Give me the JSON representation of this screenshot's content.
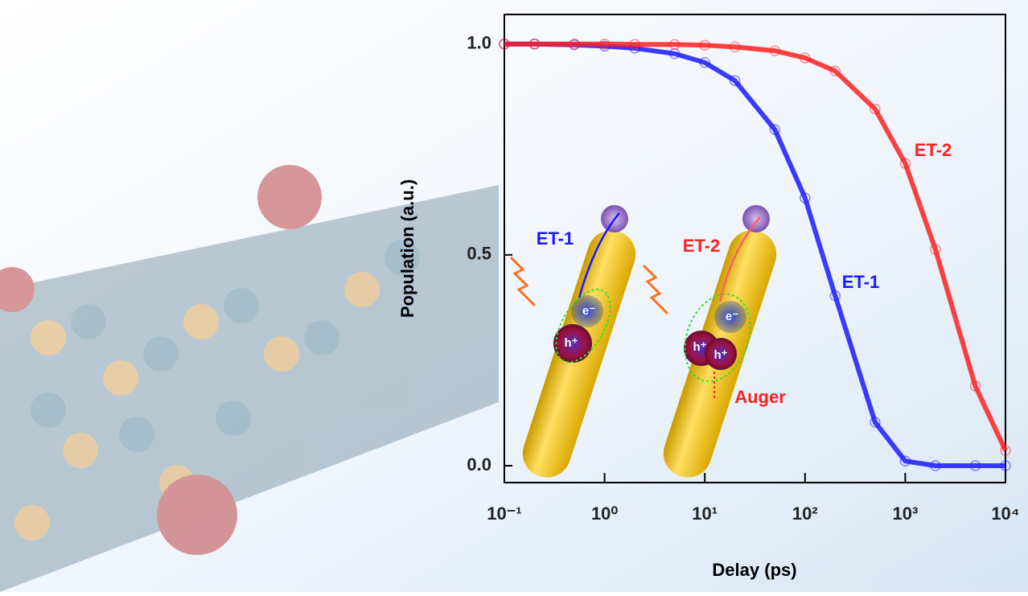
{
  "chart_data": {
    "type": "line",
    "xlabel": "Delay (ps)",
    "ylabel": "Population (a.u.)",
    "xscale": "log",
    "xlim": [
      0.1,
      10000
    ],
    "ylim": [
      -0.04,
      1.07
    ],
    "xticks": [
      {
        "value": 0.1,
        "label": "10⁻¹"
      },
      {
        "value": 1,
        "label": "10⁰"
      },
      {
        "value": 10,
        "label": "10¹"
      },
      {
        "value": 100,
        "label": "10²"
      },
      {
        "value": 1000,
        "label": "10³"
      },
      {
        "value": 10000,
        "label": "10⁴"
      }
    ],
    "yticks": [
      {
        "value": 0,
        "label": "0.0"
      },
      {
        "value": 0.5,
        "label": "0.5"
      },
      {
        "value": 1,
        "label": "1.0"
      }
    ],
    "x": [
      0.1,
      0.2,
      0.5,
      1,
      2,
      5,
      10,
      20,
      50,
      100,
      200,
      500,
      1000,
      2000,
      5000,
      10000
    ],
    "series": [
      {
        "name": "ET-1",
        "color": "#1a1aff",
        "values": [
          1.0,
          1.0,
          0.998,
          0.995,
          0.99,
          0.977,
          0.956,
          0.913,
          0.797,
          0.635,
          0.403,
          0.103,
          0.011,
          0.0,
          0.0,
          0.0
        ]
      },
      {
        "name": "ET-2",
        "color": "#ff2020",
        "values": [
          1.0,
          1.0,
          1.0,
          1.0,
          0.999,
          0.999,
          0.997,
          0.993,
          0.984,
          0.967,
          0.936,
          0.846,
          0.717,
          0.513,
          0.189,
          0.036
        ]
      }
    ],
    "annotations": [
      "ET-2",
      "ET-1",
      "ET-1",
      "ET-2",
      "Auger",
      "e⁻",
      "h⁺",
      "e⁻",
      "h⁺",
      "h⁺"
    ]
  }
}
